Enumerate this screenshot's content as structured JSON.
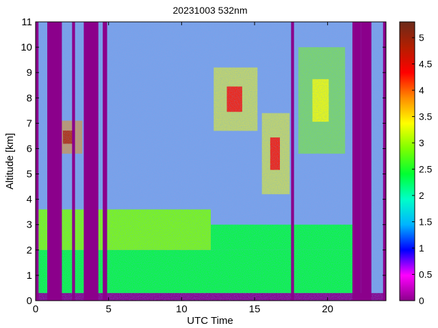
{
  "chart_data": {
    "type": "heatmap",
    "title": "20231003 532nm",
    "xlabel": "UTC Time",
    "ylabel": "Altitude [km]",
    "xlim": [
      0,
      24
    ],
    "ylim": [
      0,
      11
    ],
    "xticks": [
      0,
      5,
      10,
      15,
      20
    ],
    "yticks": [
      0,
      1,
      2,
      3,
      4,
      5,
      6,
      7,
      8,
      9,
      10,
      11
    ],
    "colorbar": {
      "range": [
        0,
        5.3
      ],
      "ticks": [
        0,
        0.5,
        1,
        1.5,
        2,
        2.5,
        3,
        3.5,
        4,
        4.5,
        5
      ],
      "tick_labels": [
        "0",
        "0.5",
        "1",
        "1.5",
        "2",
        "2.5",
        "3",
        "3.5",
        "4",
        "4.5",
        "5"
      ],
      "colormap": [
        "#8b008b",
        "#ff00ff",
        "#0000ff",
        "#00b4ff",
        "#00ffc8",
        "#00ff32",
        "#7dff00",
        "#ffff00",
        "#ff8c00",
        "#ff0000",
        "#b41e00",
        "#6b2a1a"
      ]
    },
    "no_signal_periods": [
      {
        "start": 0,
        "end": 0.2
      },
      {
        "start": 0.8,
        "end": 1.8
      },
      {
        "start": 2.5,
        "end": 2.7
      },
      {
        "start": 3.3,
        "end": 4.3
      },
      {
        "start": 4.6,
        "end": 4.9
      },
      {
        "start": 17.5,
        "end": 17.7
      },
      {
        "start": 21.7,
        "end": 22.3
      },
      {
        "start": 22.3,
        "end": 23.0
      },
      {
        "start": 23.8,
        "end": 24
      }
    ],
    "aerosol_layers": [
      {
        "start": 0.2,
        "end": 22,
        "base_km": 0.3,
        "top_km": 2.0,
        "value": 2.6
      },
      {
        "start": 0.2,
        "end": 12,
        "base_km": 2.0,
        "top_km": 3.6,
        "value": 2.7
      },
      {
        "start": 12,
        "end": 22,
        "base_km": 2.0,
        "top_km": 3.0,
        "value": 2.2
      }
    ],
    "cloud_layers": [
      {
        "start": 1.3,
        "end": 3.2,
        "base_km": 5.8,
        "top_km": 7.1,
        "value": 4.8
      },
      {
        "start": 0.9,
        "end": 1.2,
        "base_km": 4.9,
        "top_km": 5.9,
        "value": 4.0
      },
      {
        "start": 12.2,
        "end": 15.2,
        "base_km": 6.7,
        "top_km": 9.2,
        "value": 4.3
      },
      {
        "start": 15.5,
        "end": 17.4,
        "base_km": 4.2,
        "top_km": 7.4,
        "value": 4.5
      },
      {
        "start": 18.0,
        "end": 21.2,
        "base_km": 5.8,
        "top_km": 10.0,
        "value": 3.6
      }
    ]
  }
}
